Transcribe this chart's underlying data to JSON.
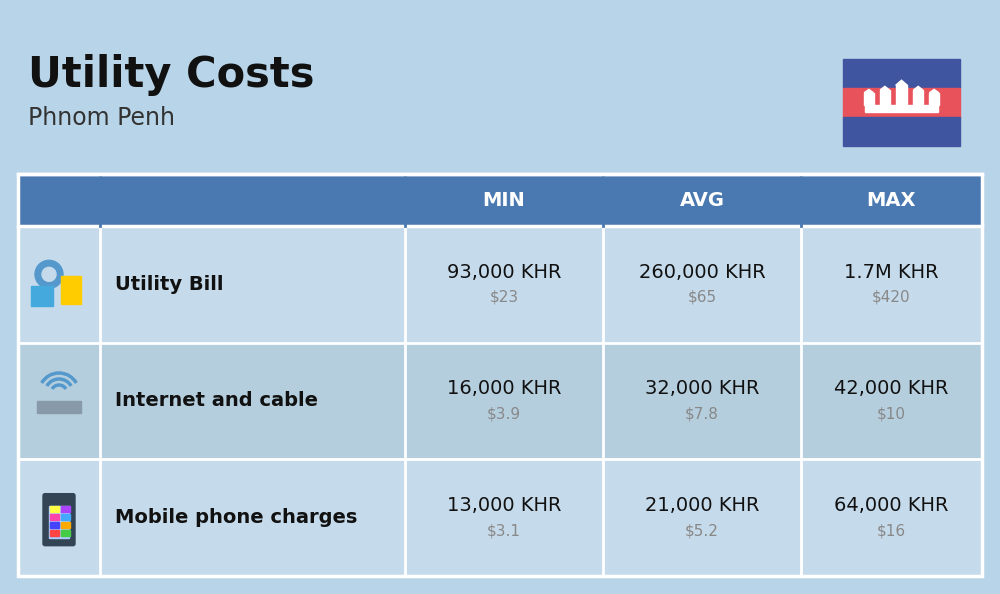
{
  "title": "Utility Costs",
  "subtitle": "Phnom Penh",
  "background_color": "#b8d4e8",
  "header_bg_color": "#4a78b0",
  "header_text_color": "#ffffff",
  "row_bg_color_1": "#c5daea",
  "row_bg_color_2": "#b5cede",
  "table_border_color": "#ffffff",
  "rows": [
    {
      "label": "Utility Bill",
      "icon": "utility",
      "min_khr": "93,000 KHR",
      "min_usd": "$23",
      "avg_khr": "260,000 KHR",
      "avg_usd": "$65",
      "max_khr": "1.7M KHR",
      "max_usd": "$420"
    },
    {
      "label": "Internet and cable",
      "icon": "internet",
      "min_khr": "16,000 KHR",
      "min_usd": "$3.9",
      "avg_khr": "32,000 KHR",
      "avg_usd": "$7.8",
      "max_khr": "42,000 KHR",
      "max_usd": "$10"
    },
    {
      "label": "Mobile phone charges",
      "icon": "mobile",
      "min_khr": "13,000 KHR",
      "min_usd": "$3.1",
      "avg_khr": "21,000 KHR",
      "avg_usd": "$5.2",
      "max_khr": "64,000 KHR",
      "max_usd": "$16"
    }
  ],
  "flag_blue": "#4055a0",
  "flag_red": "#e8525a",
  "flag_white": "#ffffff",
  "khr_fontsize": 14,
  "usd_fontsize": 11,
  "label_fontsize": 14,
  "header_fontsize": 14,
  "title_fontsize": 30,
  "subtitle_fontsize": 17,
  "usd_color": "#888888",
  "label_color": "#111111",
  "khr_color": "#111111"
}
